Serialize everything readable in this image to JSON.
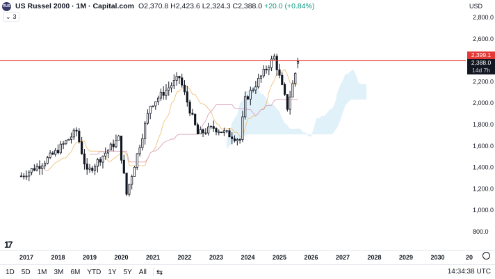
{
  "header": {
    "logo_text": "RUS",
    "title": "US Russel 2000 · 1M · Capital.com",
    "ohlc": {
      "o_label": "O",
      "o_value": "2,370.8",
      "h_label": "H",
      "h_value": "2,423.6",
      "l_label": "L",
      "l_value": "2,324.3",
      "c_label": "C",
      "c_value": "2,388.0",
      "change": "+20.0 (+0.84%)"
    },
    "indicators_count": "3",
    "currency": "USD"
  },
  "price_axis": {
    "ticks": [
      "2,800.0",
      "2,600.0",
      "2,400.0",
      "2,200.0",
      "2,000.0",
      "1,800.0",
      "1,600.0",
      "1,400.0",
      "1,200.0",
      "1,000.0",
      "800.0"
    ],
    "tick_values": [
      2800,
      2600,
      2400,
      2200,
      2000,
      1800,
      1600,
      1400,
      1200,
      1000,
      800
    ],
    "alert_label": "2,399.1",
    "last_price_label": "2,388.0",
    "countdown_label": "14d 7h"
  },
  "time_axis": {
    "labels": [
      "2017",
      "2018",
      "2019",
      "2020",
      "2021",
      "2022",
      "2023",
      "2024",
      "2025",
      "2026",
      "2027",
      "2028",
      "2029",
      "2030",
      "20"
    ]
  },
  "colors": {
    "up": "#131722",
    "down": "#131722",
    "alert_line": "#e53935",
    "conversion": "#f0c27a",
    "base": "#d9a3b9",
    "cloud": "#d6ecf8",
    "lagging": "#bfe0ef"
  },
  "chart_data": {
    "type": "candlestick",
    "symbol": "US Russel 2000",
    "interval": "1M",
    "horizontal_line": 2399.1,
    "last_price": 2388.0,
    "ylim": [
      700,
      2900
    ],
    "approx_monthly_closes": [
      {
        "period": "2016-11",
        "close": 1320
      },
      {
        "period": "2017-06",
        "close": 1420
      },
      {
        "period": "2017-12",
        "close": 1540
      },
      {
        "period": "2018-08",
        "close": 1740
      },
      {
        "period": "2018-12",
        "close": 1350
      },
      {
        "period": "2019-12",
        "close": 1670
      },
      {
        "period": "2020-03",
        "close": 1150
      },
      {
        "period": "2020-12",
        "close": 1980
      },
      {
        "period": "2021-11",
        "close": 2240
      },
      {
        "period": "2022-06",
        "close": 1710
      },
      {
        "period": "2022-12",
        "close": 1770
      },
      {
        "period": "2023-10",
        "close": 1660
      },
      {
        "period": "2023-12",
        "close": 2030
      },
      {
        "period": "2024-11",
        "close": 2430
      },
      {
        "period": "2025-04",
        "close": 1960
      },
      {
        "period": "2025-08",
        "close": 2388
      }
    ]
  },
  "footer": {
    "ranges": [
      "1D",
      "5D",
      "1M",
      "3M",
      "6M",
      "YTD",
      "1Y",
      "5Y",
      "All"
    ],
    "compare_icon": "calendar-range-icon",
    "time": "14:34:38 UTC"
  }
}
